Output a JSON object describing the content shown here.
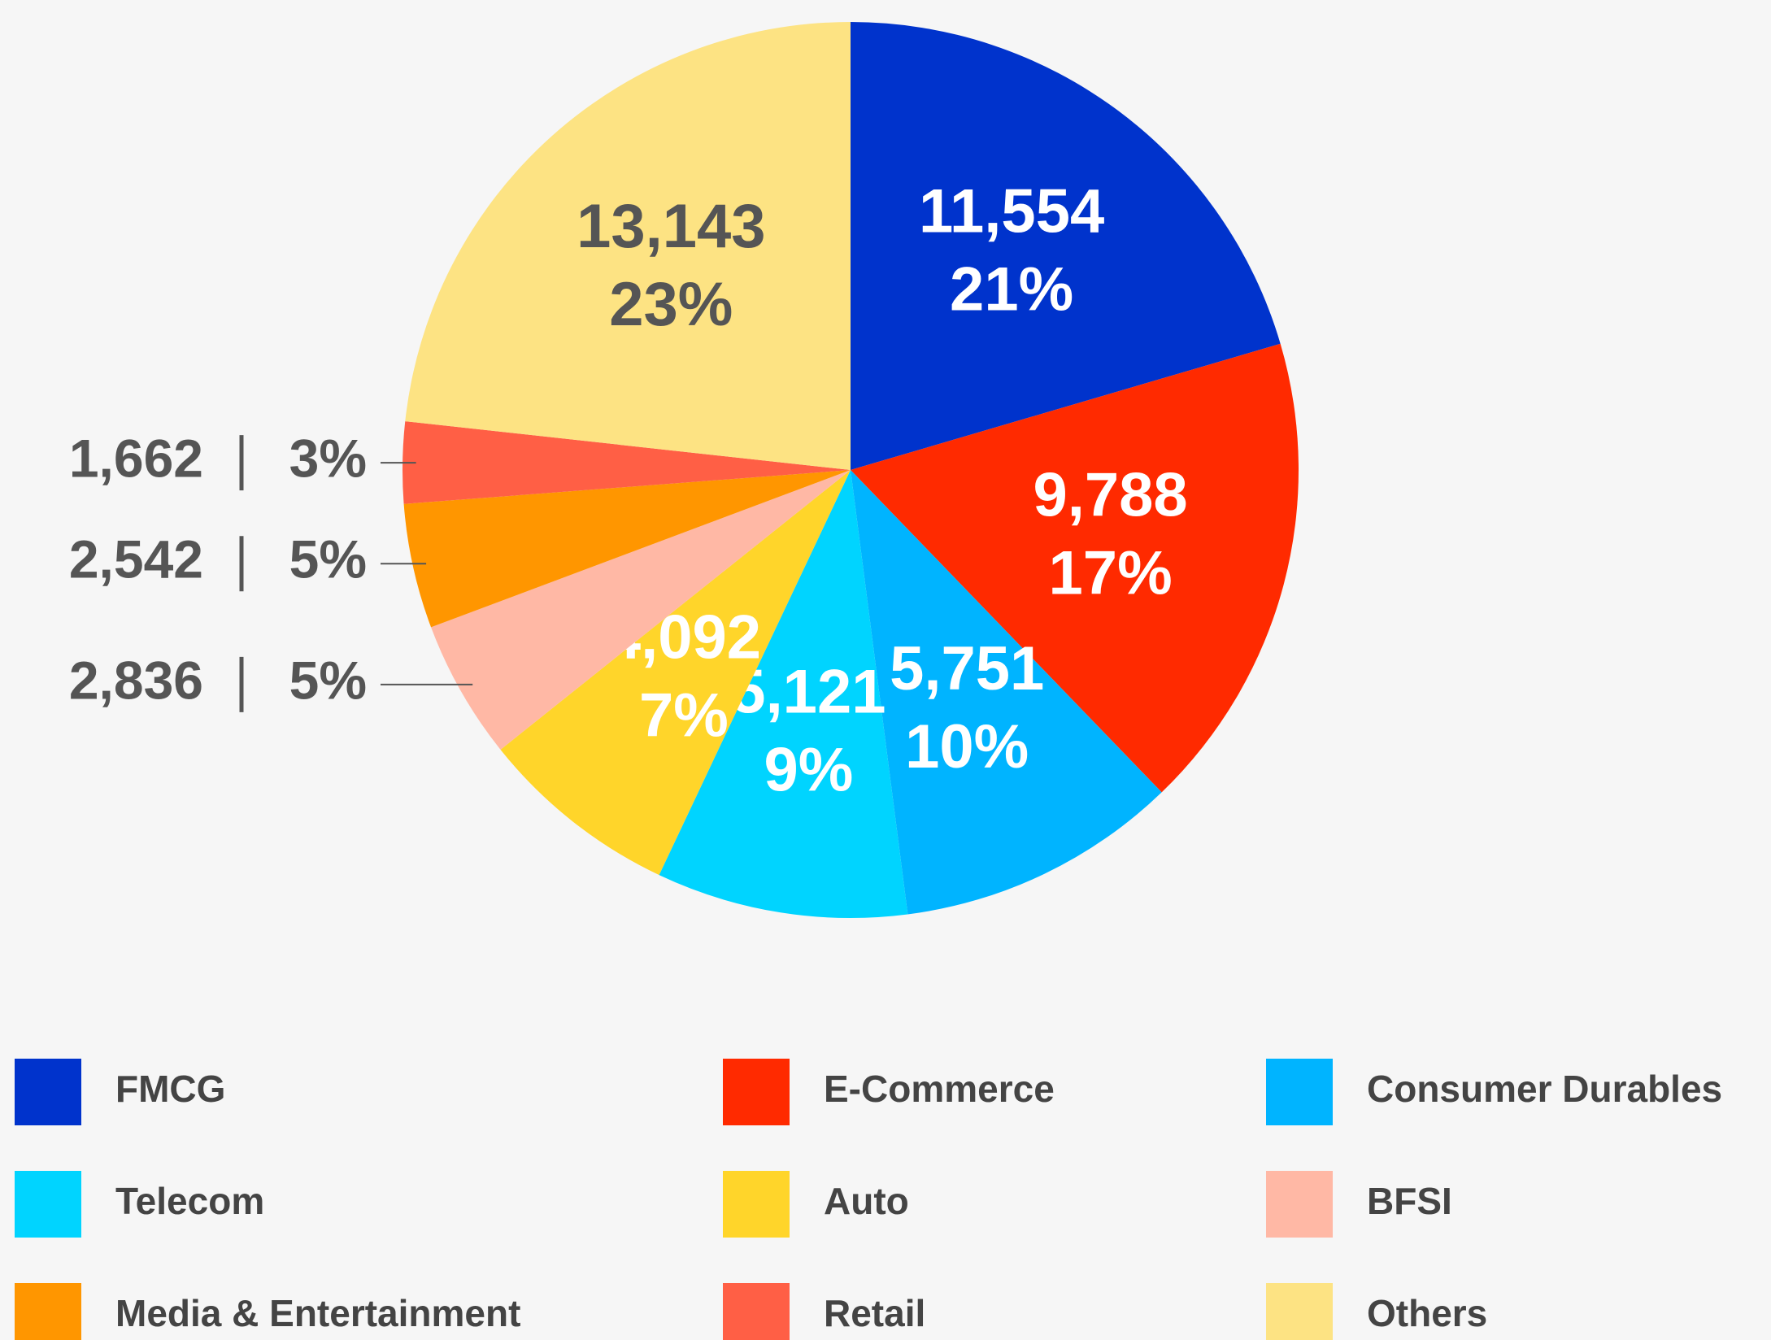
{
  "chart_data": {
    "type": "pie",
    "categories": [
      "FMCG",
      "E-Commerce",
      "Consumer Durables",
      "Telecom",
      "Auto",
      "BFSI",
      "Media & Entertainment",
      "Retail",
      "Others"
    ],
    "values": [
      11554,
      9788,
      5751,
      5121,
      4092,
      2836,
      2542,
      1662,
      13143
    ],
    "value_labels": [
      "11,554",
      "9,788",
      "5,751",
      "5,121",
      "4,092",
      "2,836",
      "2,542",
      "1,662",
      "13,143"
    ],
    "percent_labels": [
      "21%",
      "17%",
      "10%",
      "9%",
      "7%",
      "5%",
      "5%",
      "3%",
      "23%"
    ],
    "colors": [
      "#0033cc",
      "#ff2a00",
      "#00b4ff",
      "#00d4ff",
      "#ffd52a",
      "#ffb8a5",
      "#ff9600",
      "#ff5f45",
      "#fde383"
    ],
    "label_colors": [
      "#ffffff",
      "#ffffff",
      "#ffffff",
      "#ffffff",
      "#ffffff",
      "#555555",
      "#555555",
      "#555555",
      "#555555"
    ]
  }
}
